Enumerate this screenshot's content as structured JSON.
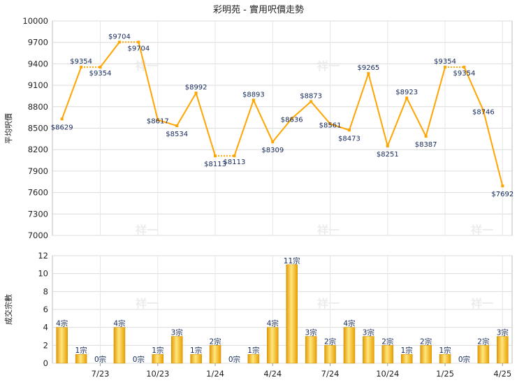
{
  "chart_data": [
    {
      "type": "line",
      "title": "彩明苑 - 實用呎價走勢",
      "ylabel": "平均呎價",
      "ylim": [
        7000,
        10000
      ],
      "yticks": [
        7000,
        7300,
        7600,
        7900,
        8200,
        8500,
        8800,
        9100,
        9400,
        9700,
        10000
      ],
      "grid": true,
      "color": "#ffa500",
      "months": [
        "2023-05",
        "2023-06",
        "2023-07",
        "2023-08",
        "2023-09",
        "2023-10",
        "2023-11",
        "2023-12",
        "2024-01",
        "2024-02",
        "2024-03",
        "2024-04",
        "2024-05",
        "2024-06",
        "2024-07",
        "2024-08",
        "2024-09",
        "2024-10",
        "2024-11",
        "2024-12",
        "2025-01",
        "2025-02",
        "2025-03",
        "2025-04"
      ],
      "values": [
        8629,
        9354,
        9354,
        9704,
        9704,
        8617,
        8534,
        8992,
        8113,
        8113,
        8893,
        8309,
        8636,
        8873,
        8561,
        8473,
        9265,
        8251,
        8923,
        8387,
        9354,
        9354,
        8746,
        7692
      ],
      "labels": [
        "$8629",
        "$9354",
        "$9354",
        "$9704",
        "$9704",
        "$8617",
        "$8534",
        "$8992",
        "$8113",
        "$8113",
        "$8893",
        "$8309",
        "$8636",
        "$8873",
        "$8561",
        "$8473",
        "$9265",
        "$8251",
        "$8923",
        "$8387",
        "$9354",
        "$9354",
        "$8746",
        "$7692"
      ],
      "carried": [
        false,
        false,
        true,
        false,
        true,
        false,
        false,
        false,
        false,
        true,
        false,
        false,
        false,
        false,
        false,
        false,
        false,
        false,
        false,
        false,
        false,
        true,
        false,
        false
      ]
    },
    {
      "type": "bar",
      "ylabel": "成交宗數",
      "ylim": [
        0,
        12
      ],
      "yticks": [
        0,
        2,
        4,
        6,
        8,
        10,
        12
      ],
      "grid": true,
      "months": [
        "2023-05",
        "2023-06",
        "2023-07",
        "2023-08",
        "2023-09",
        "2023-10",
        "2023-11",
        "2023-12",
        "2024-01",
        "2024-02",
        "2024-03",
        "2024-04",
        "2024-05",
        "2024-06",
        "2024-07",
        "2024-08",
        "2024-09",
        "2024-10",
        "2024-11",
        "2024-12",
        "2025-01",
        "2025-02",
        "2025-03",
        "2025-04"
      ],
      "values": [
        4,
        1,
        0,
        4,
        0,
        1,
        3,
        1,
        2,
        0,
        1,
        4,
        11,
        3,
        2,
        4,
        3,
        2,
        1,
        2,
        1,
        0,
        2,
        3
      ],
      "labels": [
        "4宗",
        "1宗",
        "0宗",
        "4宗",
        "0宗",
        "1宗",
        "3宗",
        "1宗",
        "2宗",
        "0宗",
        "1宗",
        "4宗",
        "11宗",
        "3宗",
        "2宗",
        "4宗",
        "3宗",
        "2宗",
        "1宗",
        "2宗",
        "1宗",
        "0宗",
        "2宗",
        "3宗"
      ],
      "xtick_labels": [
        "7/23",
        "10/23",
        "1/24",
        "4/24",
        "7/24",
        "10/24",
        "1/25",
        "4/25"
      ],
      "xtick_index": [
        2,
        5,
        8,
        11,
        14,
        17,
        20,
        23
      ]
    }
  ],
  "watermark": "祥一"
}
